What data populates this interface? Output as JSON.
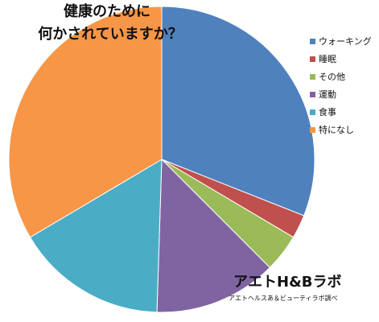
{
  "chart_data": {
    "type": "pie",
    "title_lines": [
      "健康のために",
      "何かされていますか？"
    ],
    "categories": [
      "ウォーキング",
      "睡眠",
      "その他",
      "運動",
      "食事",
      "特になし"
    ],
    "values": [
      31,
      2.5,
      4,
      13,
      16,
      33.5
    ],
    "colors": [
      "#4f81bd",
      "#c0504d",
      "#9bbb59",
      "#8064a2",
      "#4bacc6",
      "#f79646"
    ],
    "legend_position": "right",
    "start_angle": "top",
    "direction": "clockwise"
  },
  "brand": "アエトH&Bラボ",
  "credit": "アエトヘルスあ＆ビューティラボ調べ"
}
